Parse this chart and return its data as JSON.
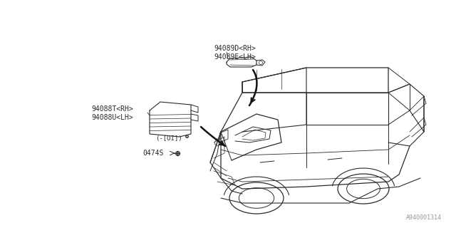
{
  "bg_color": "#ffffff",
  "fig_width": 6.4,
  "fig_height": 3.2,
  "dpi": 100,
  "watermark": "A940001314",
  "labels": {
    "label_94089D": "94089D<RH>",
    "label_94089E": "94089E<LH>",
    "label_94088T": "94088T<RH>",
    "label_94088U": "94088U<LH>",
    "label_loi": "(-[OI])",
    "label_0474S": "0474S"
  },
  "line_color": "#2a2a2a",
  "line_width": 0.7,
  "font_size": 7.0
}
